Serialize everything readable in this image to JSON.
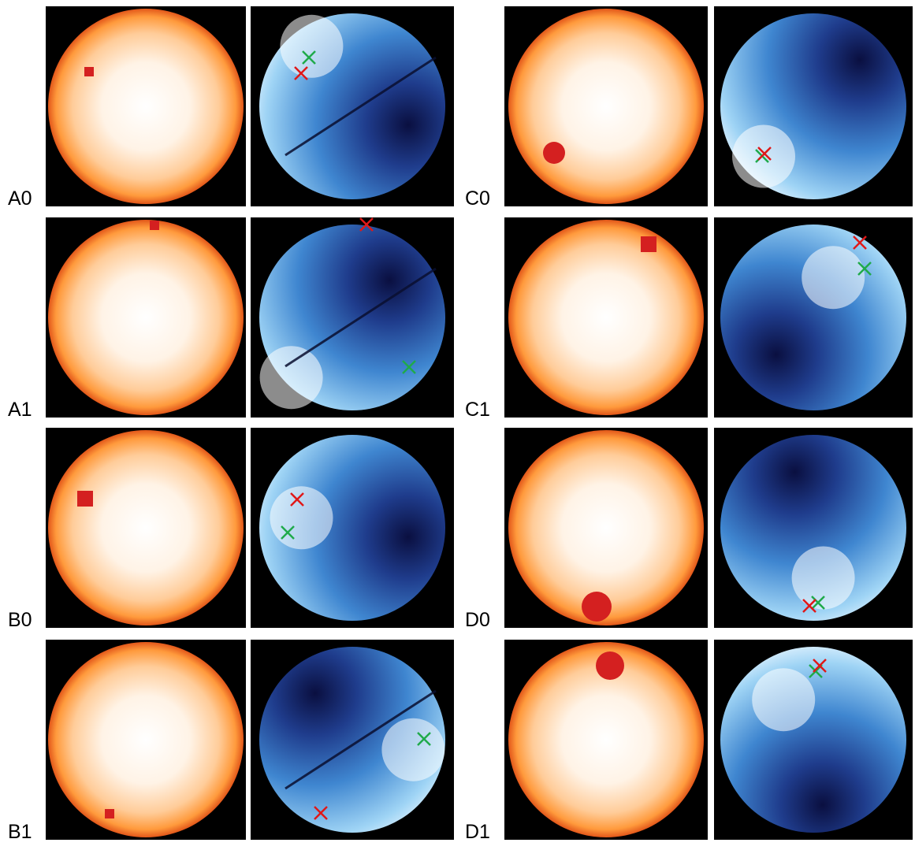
{
  "panels": [
    {
      "label": "A0"
    },
    {
      "label": "A1"
    },
    {
      "label": "B0"
    },
    {
      "label": "B1"
    },
    {
      "label": "C0"
    },
    {
      "label": "C1"
    },
    {
      "label": "D0"
    },
    {
      "label": "D1"
    }
  ]
}
